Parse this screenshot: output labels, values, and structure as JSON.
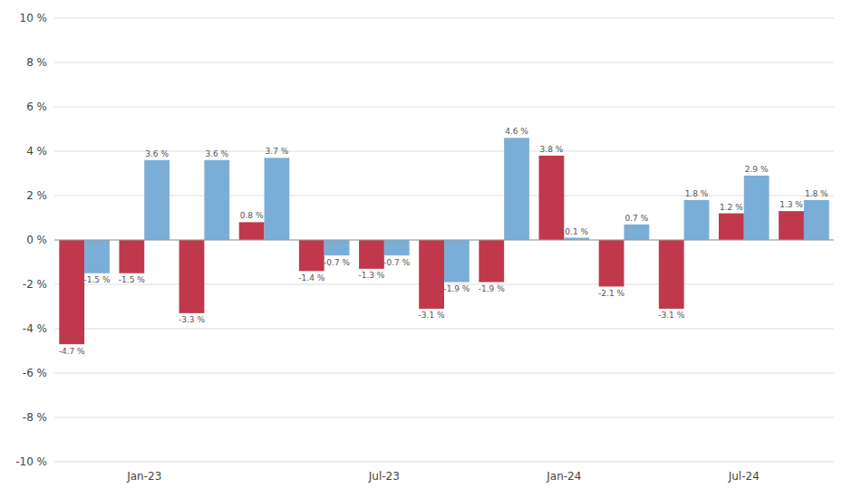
{
  "chart_data": {
    "type": "bar",
    "categories": [
      null,
      "Jan-23",
      null,
      null,
      null,
      "Jul-23",
      null,
      null,
      "Jan-24",
      null,
      null,
      "Jul-24",
      null
    ],
    "series": [
      {
        "color": "#c0384b",
        "values": [
          -4.7,
          -1.5,
          -3.3,
          0.8,
          -1.4,
          -1.3,
          -3.1,
          -1.9,
          3.8,
          -2.1,
          -3.1,
          1.2,
          1.3
        ],
        "value_labels": [
          "-4.7 %",
          "-1.5 %",
          "-3.3 %",
          "0.8 %",
          "-1.4 %",
          "-1.3 %",
          "-3.1 %",
          "-1.9 %",
          "3.8 %",
          "-2.1 %",
          "-3.1 %",
          "1.2 %",
          "1.3 %"
        ]
      },
      {
        "color": "#7aaed6",
        "values": [
          -1.5,
          3.6,
          3.6,
          3.7,
          -0.7,
          -0.7,
          -1.9,
          4.6,
          0.1,
          0.7,
          1.8,
          2.9,
          1.8
        ],
        "value_labels": [
          "-1.5 %",
          "3.6 %",
          "3.6 %",
          "3.7 %",
          "-0.7 %",
          "-0.7 %",
          "-1.9 %",
          "4.6 %",
          "0.1 %",
          "0.7 %",
          "1.8 %",
          "2.9 %",
          "1.8 %"
        ]
      }
    ],
    "ylim": [
      -10,
      10
    ],
    "yticks": [
      {
        "value": -10,
        "label": "-10 %"
      },
      {
        "value": -8,
        "label": "-8 %"
      },
      {
        "value": -6,
        "label": "-6 %"
      },
      {
        "value": -4,
        "label": "-4 %"
      },
      {
        "value": -2,
        "label": "-2 %"
      },
      {
        "value": 0,
        "label": "0 %"
      },
      {
        "value": 2,
        "label": "2 %"
      },
      {
        "value": 4,
        "label": "4 %"
      },
      {
        "value": 6,
        "label": "6 %"
      },
      {
        "value": 8,
        "label": "8 %"
      },
      {
        "value": 10,
        "label": "10 %"
      }
    ],
    "grid": true,
    "data_labels": true
  }
}
